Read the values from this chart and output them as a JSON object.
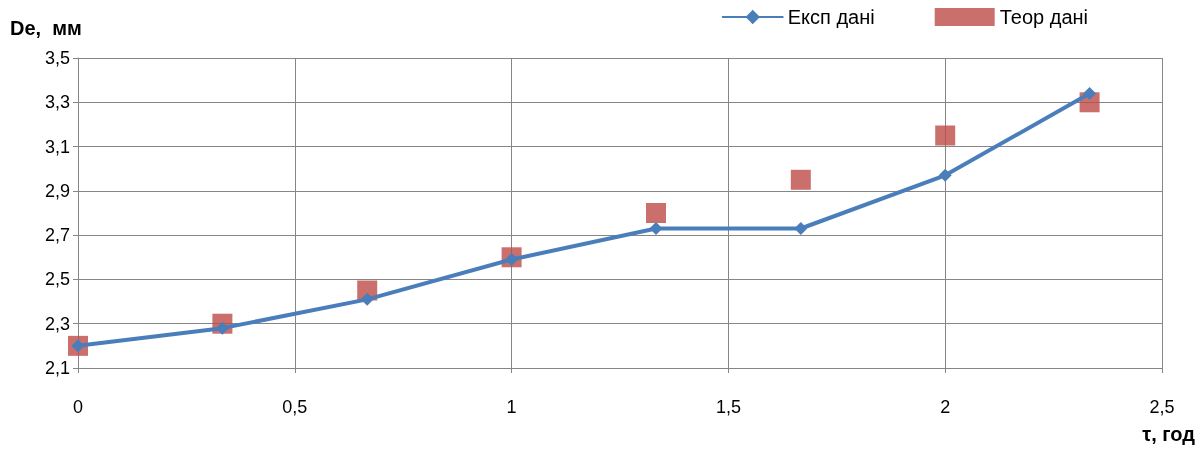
{
  "chart_data": {
    "type": "line",
    "xlabel": "τ, год",
    "ylabel": "De,  мм",
    "x": [
      0,
      0.333,
      0.667,
      1,
      1.333,
      1.667,
      2,
      2.333
    ],
    "series": [
      {
        "name": "Експ дані",
        "color": "#4a7ebb",
        "marker": "diamond",
        "values": [
          2.2,
          2.28,
          2.41,
          2.59,
          2.73,
          2.73,
          2.97,
          3.34
        ]
      },
      {
        "name": "Теор дані",
        "type": "scatter",
        "color": "#be4b48",
        "marker": "square",
        "values": [
          2.2,
          2.3,
          2.45,
          2.6,
          2.8,
          2.95,
          3.15,
          3.3
        ]
      }
    ],
    "xlim": [
      0,
      2.5
    ],
    "xticks": [
      0,
      {
        "value": 0.5,
        "label": "0,5"
      },
      1,
      {
        "value": 1.5,
        "label": "1,5"
      },
      2,
      {
        "value": 2.5,
        "label": "2,5"
      }
    ],
    "ylim": [
      2.1,
      3.5
    ],
    "yticks": [
      {
        "value": 2.1,
        "label": "2,1"
      },
      {
        "value": 2.3,
        "label": "2,3"
      },
      {
        "value": 2.5,
        "label": "2,5"
      },
      {
        "value": 2.7,
        "label": "2,7"
      },
      {
        "value": 2.9,
        "label": "2,9"
      },
      {
        "value": 3.1,
        "label": "3,1"
      },
      {
        "value": 3.3,
        "label": "3,3"
      },
      {
        "value": 3.5,
        "label": "3,5"
      }
    ],
    "grid": true,
    "legend": "top right"
  }
}
